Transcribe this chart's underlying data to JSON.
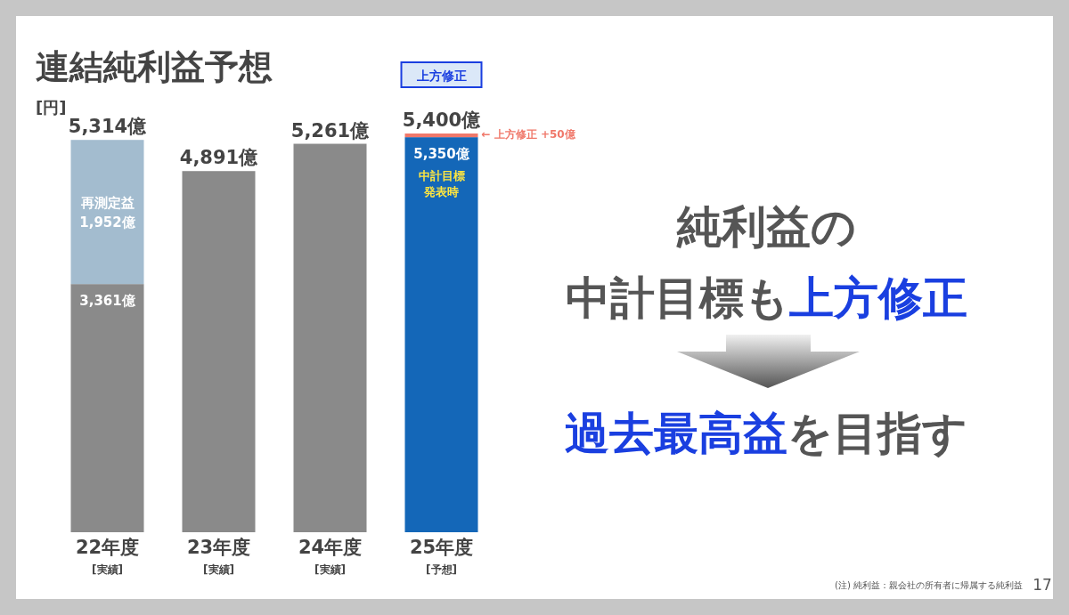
{
  "chart_data": {
    "type": "bar",
    "title": "連結純利益予想",
    "ylabel": "[円]",
    "stacked": true,
    "categories": [
      "22年度\n[実績]",
      "23年度\n[実績]",
      "24年度\n[実績]",
      "25年度\n[予想]"
    ],
    "series": [
      {
        "values": [
          3361,
          4891,
          5261,
          5350
        ],
        "colors": [
          "#8a8a8a",
          "#8a8a8a",
          "#8a8a8a",
          "#1467b8"
        ],
        "value_labels": [
          "3,361億",
          null,
          null,
          "5,350億"
        ]
      },
      {
        "values": [
          1952,
          null,
          null,
          50
        ],
        "colors": [
          "#a3bccf",
          null,
          null,
          "#f0786a"
        ],
        "value_labels": [
          "再測定益\n1,952億",
          null,
          null,
          null
        ]
      }
    ],
    "totals": [
      "5,314億",
      "4,891億",
      "5,261億",
      "5,400億"
    ],
    "annotations": [
      "上方修正",
      "← 上方修正 +50億",
      "中計目標",
      "発表時",
      "純利益の",
      "中計目標も",
      "上方修正",
      "過去最高益",
      "を目指す",
      "(注) 純利益：親会社の所有者に帰属する純利益",
      "17"
    ]
  }
}
